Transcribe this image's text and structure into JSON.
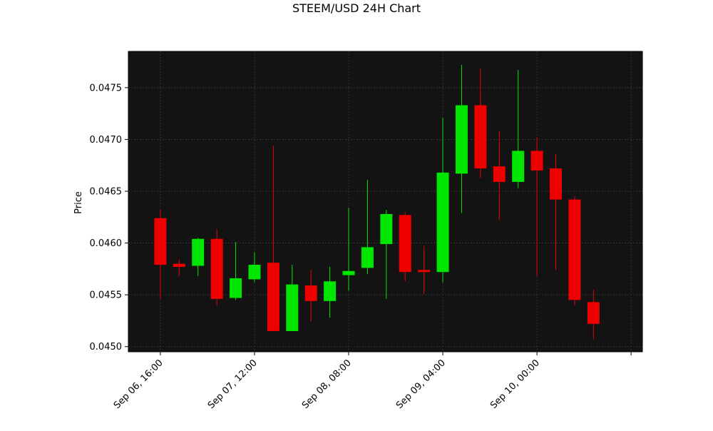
{
  "chart_data": {
    "type": "candlestick",
    "title": "STEEM/USD 24H Chart",
    "xlabel": "",
    "ylabel": "Price",
    "grid": true,
    "colors": {
      "background": "#131313",
      "up": "#00e600",
      "down": "#ee0000",
      "grid": "#3a3a3a"
    },
    "ylim": [
      0.04495,
      0.04785
    ],
    "y_ticks": [
      {
        "value": 0.045,
        "label": "0.0450"
      },
      {
        "value": 0.0455,
        "label": "0.0455"
      },
      {
        "value": 0.046,
        "label": "0.0460"
      },
      {
        "value": 0.0465,
        "label": "0.0465"
      },
      {
        "value": 0.047,
        "label": "0.0470"
      },
      {
        "value": 0.0475,
        "label": "0.0475"
      }
    ],
    "x_index_range": [
      -1.7,
      25.6
    ],
    "x_ticks": [
      {
        "index": 0,
        "label": "Sep 06, 16:00"
      },
      {
        "index": 5,
        "label": "Sep 07, 12:00"
      },
      {
        "index": 10,
        "label": "Sep 08, 08:00"
      },
      {
        "index": 15,
        "label": "Sep 09, 04:00"
      },
      {
        "index": 20,
        "label": "Sep 10, 00:00"
      },
      {
        "index": 25,
        "label": ""
      }
    ],
    "candles": [
      {
        "o": 0.04624,
        "h": 0.04632,
        "l": 0.04546,
        "c": 0.04579
      },
      {
        "o": 0.0458,
        "h": 0.04584,
        "l": 0.04568,
        "c": 0.04577
      },
      {
        "o": 0.04578,
        "h": 0.04605,
        "l": 0.04568,
        "c": 0.04604
      },
      {
        "o": 0.04604,
        "h": 0.04613,
        "l": 0.0454,
        "c": 0.04546
      },
      {
        "o": 0.04547,
        "h": 0.04601,
        "l": 0.04545,
        "c": 0.04566
      },
      {
        "o": 0.04565,
        "h": 0.04591,
        "l": 0.04562,
        "c": 0.04579
      },
      {
        "o": 0.04581,
        "h": 0.04694,
        "l": 0.04515,
        "c": 0.04515
      },
      {
        "o": 0.04515,
        "h": 0.04579,
        "l": 0.04515,
        "c": 0.0456
      },
      {
        "o": 0.04559,
        "h": 0.04574,
        "l": 0.04524,
        "c": 0.04544
      },
      {
        "o": 0.04544,
        "h": 0.04577,
        "l": 0.04528,
        "c": 0.04563
      },
      {
        "o": 0.04569,
        "h": 0.04634,
        "l": 0.04554,
        "c": 0.04573
      },
      {
        "o": 0.04576,
        "h": 0.04661,
        "l": 0.0457,
        "c": 0.04596
      },
      {
        "o": 0.04599,
        "h": 0.04632,
        "l": 0.04546,
        "c": 0.04628
      },
      {
        "o": 0.04627,
        "h": 0.0463,
        "l": 0.04563,
        "c": 0.04572
      },
      {
        "o": 0.04574,
        "h": 0.04597,
        "l": 0.04551,
        "c": 0.04572
      },
      {
        "o": 0.04572,
        "h": 0.04721,
        "l": 0.04562,
        "c": 0.04668
      },
      {
        "o": 0.04667,
        "h": 0.04772,
        "l": 0.04629,
        "c": 0.04733
      },
      {
        "o": 0.04733,
        "h": 0.04768,
        "l": 0.04663,
        "c": 0.04672
      },
      {
        "o": 0.04674,
        "h": 0.04708,
        "l": 0.04622,
        "c": 0.04659
      },
      {
        "o": 0.04659,
        "h": 0.04767,
        "l": 0.04653,
        "c": 0.04689
      },
      {
        "o": 0.04689,
        "h": 0.04702,
        "l": 0.04568,
        "c": 0.0467
      },
      {
        "o": 0.04672,
        "h": 0.04686,
        "l": 0.04574,
        "c": 0.04642
      },
      {
        "o": 0.04642,
        "h": 0.04645,
        "l": 0.0454,
        "c": 0.04545
      },
      {
        "o": 0.04543,
        "h": 0.04555,
        "l": 0.04507,
        "c": 0.04522
      }
    ]
  }
}
